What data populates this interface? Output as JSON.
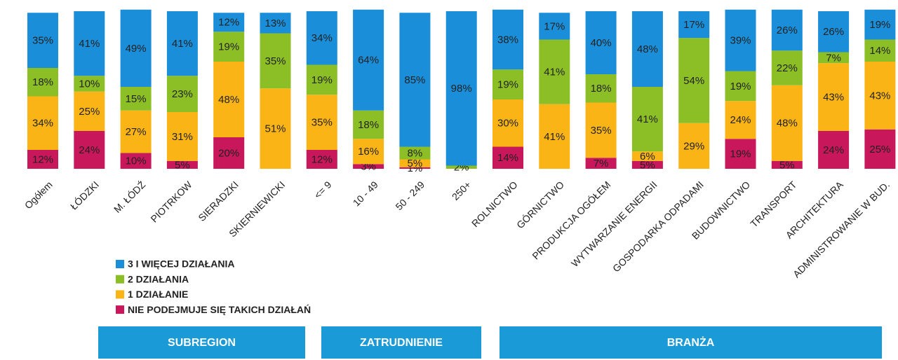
{
  "chart_data": {
    "type": "stacked_bar",
    "categories": [
      "Ogółem",
      "ŁÓDZKI",
      "M. ŁÓDŹ",
      "PIOTRKOW",
      "SIERADZKI",
      "SKIERNIEWICKI",
      "<= 9",
      "10 - 49",
      "50 - 249",
      "250+",
      "ROLNICTWO",
      "GÓRNICTWO",
      "PRODUKCJA OGÓŁEM",
      "WYTWARZANIE ENERGII",
      "GOSPODARKA ODPADAMI",
      "BUDOWNICTWO",
      "TRANSPORT",
      "ARCHITEKTURA",
      "ADMINISTROWANIE W BUD."
    ],
    "series": [
      {
        "name": "NIE PODEJMUJE SIĘ TAKICH DZIAŁAŃ",
        "color": "#c8175a",
        "values": [
          12,
          24,
          10,
          5,
          20,
          null,
          12,
          3,
          1,
          null,
          14,
          null,
          7,
          5,
          null,
          19,
          5,
          24,
          25
        ],
        "value_labels": [
          "12%",
          "24%",
          "10%",
          "5%",
          "20%",
          null,
          "12%",
          "3%",
          "1%",
          null,
          "14%",
          null,
          "7%",
          "5%",
          null,
          "19%",
          "5%",
          "24%",
          "25%"
        ]
      },
      {
        "name": "1 DZIAŁANIE",
        "color": "#fbb416",
        "values": [
          34,
          25,
          27,
          31,
          48,
          51,
          35,
          16,
          5,
          null,
          30,
          41,
          35,
          6,
          29,
          24,
          48,
          43,
          43
        ],
        "value_labels": [
          "34%",
          "25%",
          "27%",
          "31%",
          "48%",
          "51%",
          "35%",
          "16%",
          "5%",
          null,
          "30%",
          "41%",
          "35%",
          "6%",
          "29%",
          "24%",
          "48%",
          "43%",
          "43%"
        ]
      },
      {
        "name": "2 DZIAŁANIA",
        "color": "#8cbf26",
        "values": [
          18,
          10,
          15,
          23,
          19,
          35,
          19,
          18,
          8,
          2,
          19,
          41,
          18,
          41,
          54,
          19,
          22,
          7,
          14
        ],
        "value_labels": [
          "18%",
          "10%",
          "15%",
          "23%",
          "19%",
          "35%",
          "19%",
          "18%",
          "8%",
          "2%",
          "19%",
          "41%",
          "18%",
          "41%",
          "54%",
          "19%",
          "22%",
          "7%",
          "14%"
        ]
      },
      {
        "name": "3 I WIĘCEJ DZIAŁANIA",
        "color": "#1a8ed8",
        "values": [
          35,
          41,
          49,
          41,
          12,
          13,
          34,
          64,
          85,
          98,
          38,
          17,
          40,
          48,
          17,
          39,
          26,
          26,
          19
        ],
        "value_labels": [
          "35%",
          "41%",
          "49%",
          "41%",
          "12%",
          "13%",
          "34%",
          "64%",
          "85%",
          "98%",
          "38%",
          "17%",
          "40%",
          "48%",
          "17%",
          "39%",
          "26%",
          "26%",
          "19%"
        ]
      }
    ],
    "ylim": [
      0,
      100
    ],
    "groups": [
      "SUBREGION",
      "ZATRUDNIENIE",
      "BRANŻA"
    ]
  }
}
